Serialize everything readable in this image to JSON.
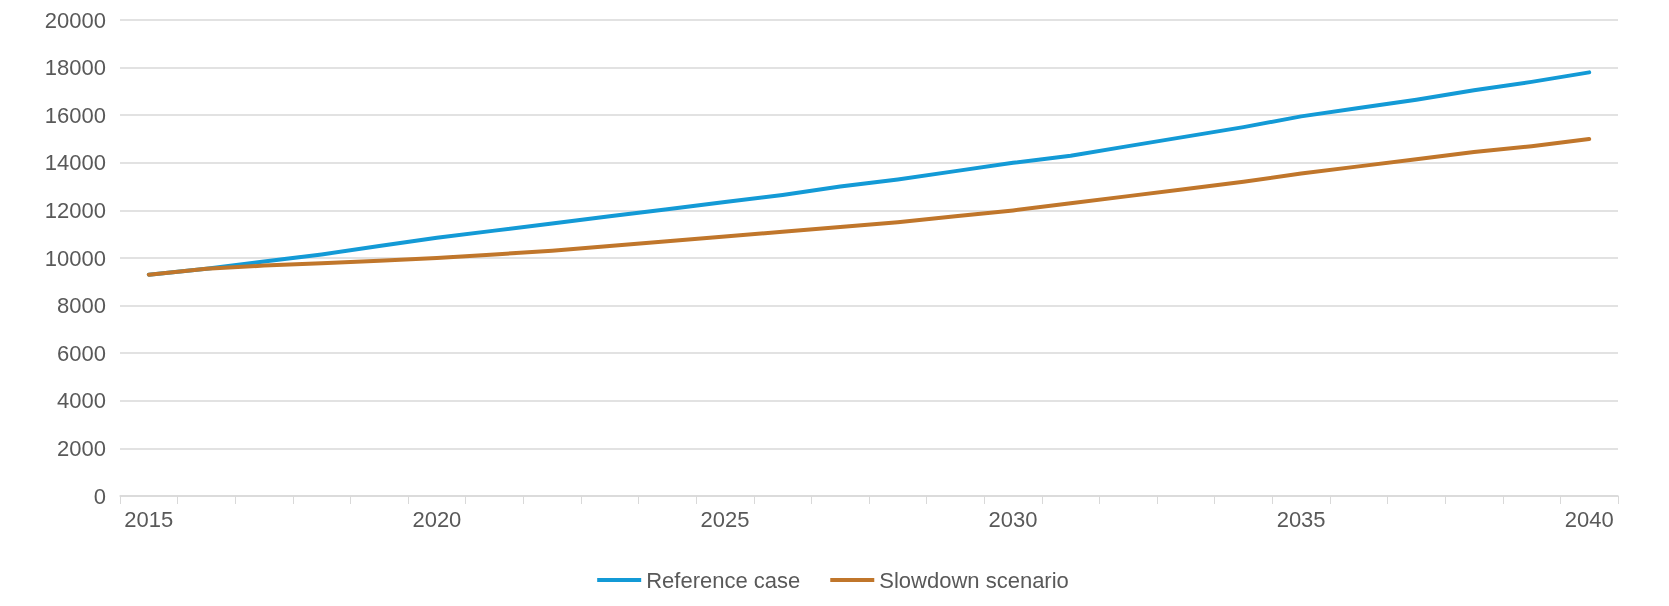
{
  "chart_data": {
    "type": "line",
    "categories": [
      "2015",
      null,
      null,
      null,
      null,
      "2020",
      null,
      null,
      null,
      null,
      "2025",
      null,
      null,
      null,
      null,
      "2030",
      null,
      null,
      null,
      null,
      "2035",
      null,
      null,
      null,
      null,
      "2040"
    ],
    "series": [
      {
        "name": "Reference case",
        "color": "#139ad6",
        "values": [
          9300,
          9550,
          9850,
          10150,
          10500,
          10850,
          11150,
          11450,
          11750,
          12050,
          12350,
          12650,
          13000,
          13300,
          13650,
          14000,
          14300,
          14700,
          15100,
          15500,
          15950,
          16300,
          16650,
          17050,
          17400,
          17800
        ]
      },
      {
        "name": "Slowdown scenario",
        "color": "#c0762b",
        "values": [
          9300,
          9550,
          9680,
          9780,
          9880,
          10000,
          10150,
          10300,
          10500,
          10700,
          10900,
          11100,
          11300,
          11500,
          11750,
          12000,
          12300,
          12600,
          12900,
          13200,
          13550,
          13850,
          14150,
          14450,
          14700,
          15000
        ]
      }
    ],
    "ylim": [
      0,
      20000
    ],
    "yticks": [
      0,
      2000,
      4000,
      6000,
      8000,
      10000,
      12000,
      14000,
      16000,
      18000,
      20000
    ],
    "grid": "y",
    "legend": "bottom",
    "marker": "none",
    "line_style": "solid"
  }
}
